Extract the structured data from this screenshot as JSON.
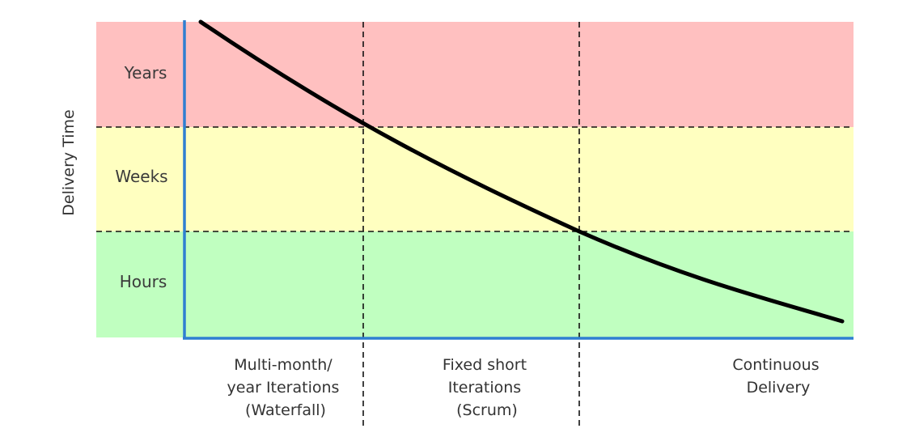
{
  "diagram": {
    "y_axis_title": "Delivery Time",
    "bands": [
      {
        "label": "Years",
        "color": "#ffc0c0"
      },
      {
        "label": "Weeks",
        "color": "#ffffc0"
      },
      {
        "label": "Hours",
        "color": "#c0ffc0"
      }
    ],
    "categories": [
      {
        "lines": [
          "Multi-month/",
          "year Iterations",
          "(Waterfall)"
        ]
      },
      {
        "lines": [
          "Fixed short",
          "Iterations",
          "(Scrum)"
        ]
      },
      {
        "lines": [
          "Continuous",
          "Delivery"
        ]
      }
    ],
    "colors": {
      "axis": "#2f7fd1",
      "curve": "#000000",
      "divider": "#111111"
    }
  }
}
